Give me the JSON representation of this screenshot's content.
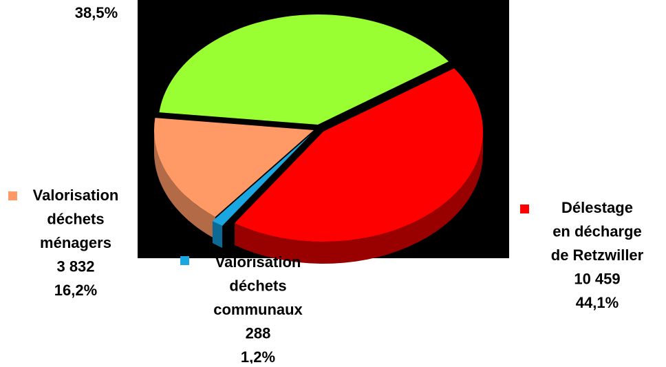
{
  "chart_data": {
    "type": "pie",
    "categories": [
      null,
      [
        "Valorisation",
        "déchets",
        "ménagers"
      ],
      [
        "Valorisation",
        "déchets",
        "communaux"
      ],
      [
        "Délestage",
        "en décharge",
        "de Retzwiller"
      ]
    ],
    "values": [
      38.5,
      16.2,
      1.2,
      44.1
    ],
    "value_labels": [
      "38,5%",
      "16,2%",
      "1,2%",
      "44,1%"
    ],
    "count_labels": [
      null,
      "3 832",
      "288",
      "10 459"
    ],
    "colors": [
      "#99ff33",
      "#ff9966",
      "#1aa6e0",
      "#ff0000"
    ],
    "side_colors": [
      "#4d7a1a",
      "#b36b47",
      "#0d6a94",
      "#990000"
    ]
  }
}
